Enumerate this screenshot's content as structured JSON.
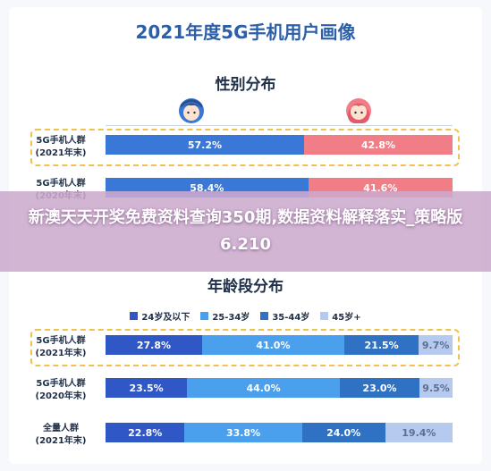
{
  "title": "2021年度5G手机用户画像",
  "overlay_caption": "新澳天天开奖免费资料查询350期,数据资料解释落实_策略版6.210",
  "colors": {
    "male": "#3a78d8",
    "female": "#f17d86",
    "age": [
      "#2f57c6",
      "#4aa0ec",
      "#2f72c4",
      "#b6c9ef"
    ],
    "title": "#2d5fa8",
    "highlight_border": "#f2c14b"
  },
  "icons": [
    "male-avatar-icon",
    "female-avatar-icon"
  ],
  "chart_data": [
    {
      "type": "bar",
      "stacked": true,
      "orientation": "horizontal",
      "title": "性别分布",
      "categories": [
        "5G手机人群\n(2021年末)",
        "5G手机人群\n(2020年末)"
      ],
      "series": [
        {
          "values": [
            57.2,
            58.4
          ]
        },
        {
          "values": [
            42.8,
            41.6
          ]
        }
      ],
      "data_labels": [
        [
          "57.2%",
          "42.8%"
        ],
        [
          "58.4%",
          "41.6%"
        ]
      ],
      "xlim": [
        0,
        100
      ],
      "highlighted_category": 0
    },
    {
      "type": "bar",
      "stacked": true,
      "orientation": "horizontal",
      "title": "年龄段分布",
      "legend": [
        "24岁及以下",
        "25-34岁",
        "35-44岁",
        "45岁+"
      ],
      "legend_position": "top",
      "categories": [
        "5G手机人群\n(2021年末)",
        "5G手机人群\n(2020年末)",
        "全量人群\n(2021年末)"
      ],
      "series": [
        {
          "name": "24岁及以下",
          "values": [
            27.8,
            23.5,
            22.8
          ]
        },
        {
          "name": "25-34岁",
          "values": [
            41.0,
            44.0,
            33.8
          ]
        },
        {
          "name": "35-44岁",
          "values": [
            21.5,
            23.0,
            24.0
          ]
        },
        {
          "name": "45岁+",
          "values": [
            9.7,
            9.5,
            19.4
          ]
        }
      ],
      "data_labels": [
        [
          "27.8%",
          "41.0%",
          "21.5%",
          "9.7%"
        ],
        [
          "23.5%",
          "44.0%",
          "23.0%",
          "9.5%"
        ],
        [
          "22.8%",
          "33.8%",
          "24.0%",
          "19.4%"
        ]
      ],
      "xlim": [
        0,
        100
      ],
      "highlighted_category": 0
    }
  ]
}
